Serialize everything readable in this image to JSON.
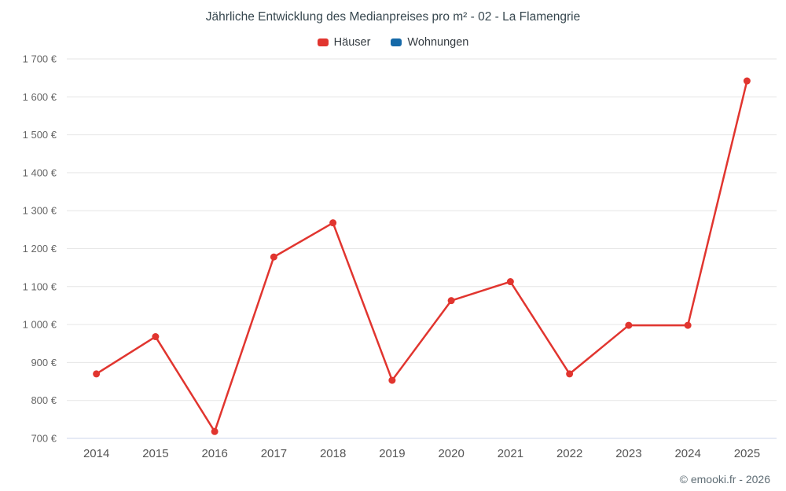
{
  "title": "Jährliche Entwicklung des Medianpreises pro m² - 02 - La Flamengrie",
  "footer": "© emooki.fr - 2026",
  "legend": {
    "items": [
      {
        "label": "Häuser",
        "color": "#e1352f"
      },
      {
        "label": "Wohnungen",
        "color": "#1569a8"
      }
    ]
  },
  "chart_data": {
    "type": "line",
    "title": "Jährliche Entwicklung des Medianpreises pro m² - 02 - La Flamengrie",
    "categories": [
      "2014",
      "2015",
      "2016",
      "2017",
      "2018",
      "2019",
      "2020",
      "2021",
      "2022",
      "2023",
      "2024",
      "2025"
    ],
    "series": [
      {
        "name": "Häuser",
        "color": "#e1352f",
        "values": [
          870,
          968,
          718,
          1178,
          1268,
          853,
          1063,
          1113,
          870,
          998,
          998,
          1642
        ]
      },
      {
        "name": "Wohnungen",
        "color": "#1569a8",
        "values": []
      }
    ],
    "ylim": [
      700,
      1700
    ],
    "ytick_step": 100,
    "ylabel_ticks": [
      "700 €",
      "800 €",
      "900 €",
      "1 000 €",
      "1 100 €",
      "1 200 €",
      "1 300 €",
      "1 400 €",
      "1 500 €",
      "1 600 €",
      "1 700 €"
    ],
    "xlabel": "",
    "ylabel": "",
    "grid": "horizontal",
    "legend_position": "top",
    "marker_radius": 4.5,
    "line_width": 2.5
  }
}
